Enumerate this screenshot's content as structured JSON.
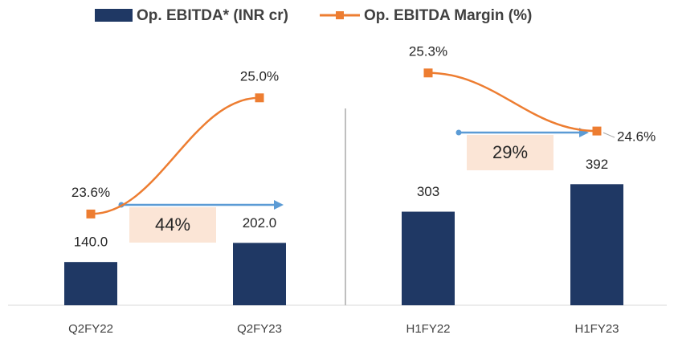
{
  "chart_data": {
    "type": "bar_line",
    "categories": [
      "Q2FY22",
      "Q2FY23",
      "H1FY22",
      "H1FY23"
    ],
    "series": [
      {
        "name": "Op. EBITDA* (INR cr)",
        "type": "bar",
        "color": "#1f3864",
        "values": [
          140.0,
          202.0,
          303,
          392
        ],
        "value_labels": [
          "140.0",
          "202.0",
          "303",
          "392"
        ]
      },
      {
        "name": "Op. EBITDA Margin (%)",
        "type": "line",
        "color": "#ed7d31",
        "axis": "y2",
        "values": [
          23.6,
          25.0,
          25.3,
          24.6
        ],
        "value_labels": [
          "23.6%",
          "25.0%",
          "25.3%",
          "24.6%"
        ]
      }
    ],
    "ylim": [
      0,
      900
    ],
    "y2lim": [
      22.5,
      25.85
    ],
    "separator_after": 1,
    "annotations": [
      "44%",
      "29%"
    ],
    "arrow_color": "#5b9bd5",
    "annotation_fill": "#fbe5d6"
  }
}
